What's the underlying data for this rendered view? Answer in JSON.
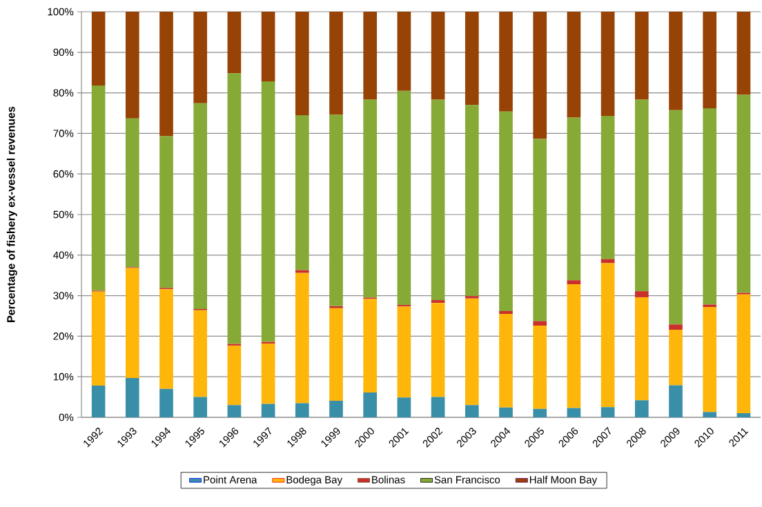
{
  "chart_data": {
    "type": "bar",
    "stacked": true,
    "ylabel": "Percentage of fishery ex-vessel revenues",
    "categories": [
      "1992",
      "1993",
      "1994",
      "1995",
      "1996",
      "1997",
      "1998",
      "1999",
      "2000",
      "2001",
      "2002",
      "2003",
      "2004",
      "2005",
      "2006",
      "2007",
      "2008",
      "2009",
      "2010",
      "2011"
    ],
    "series": [
      {
        "name": "Point Arena",
        "color": "#3a8fa8",
        "values": [
          7.8,
          9.7,
          7.0,
          5.0,
          3.0,
          3.3,
          3.5,
          4.1,
          6.1,
          4.9,
          5.0,
          3.0,
          2.4,
          2.1,
          2.3,
          2.5,
          4.2,
          7.9,
          1.3,
          1.0
        ]
      },
      {
        "name": "Bodega Bay",
        "color": "#ffb60a",
        "values": [
          23.2,
          27.1,
          24.6,
          21.4,
          14.7,
          14.9,
          32.1,
          22.8,
          23.1,
          22.4,
          23.2,
          26.3,
          23.1,
          20.5,
          30.5,
          35.5,
          25.4,
          13.7,
          25.9,
          29.3
        ]
      },
      {
        "name": "Bolinas",
        "color": "#c9302c",
        "values": [
          0.2,
          0.2,
          0.3,
          0.3,
          0.4,
          0.4,
          0.7,
          0.5,
          0.3,
          0.4,
          0.7,
          0.6,
          0.7,
          1.1,
          1.0,
          1.0,
          1.5,
          1.3,
          0.6,
          0.4
        ]
      },
      {
        "name": "San Francisco",
        "color": "#86aa35",
        "values": [
          50.6,
          36.7,
          37.4,
          50.7,
          66.7,
          64.2,
          38.2,
          47.2,
          48.8,
          52.8,
          49.4,
          47.1,
          49.2,
          44.9,
          40.1,
          35.3,
          47.2,
          52.8,
          48.4,
          48.8
        ]
      },
      {
        "name": "Half Moon Bay",
        "color": "#974306",
        "values": [
          18.2,
          26.3,
          30.7,
          22.6,
          15.2,
          17.2,
          25.5,
          25.4,
          21.7,
          19.5,
          21.7,
          23.0,
          24.6,
          31.4,
          26.1,
          25.7,
          21.7,
          24.3,
          23.8,
          20.5
        ]
      }
    ],
    "ylim": [
      0,
      100
    ],
    "yticks": [
      {
        "value": 0,
        "label": "0%"
      },
      {
        "value": 10,
        "label": "10%"
      },
      {
        "value": 20,
        "label": "20%"
      },
      {
        "value": 30,
        "label": "30%"
      },
      {
        "value": 40,
        "label": "40%"
      },
      {
        "value": 50,
        "label": "50%"
      },
      {
        "value": 60,
        "label": "60%"
      },
      {
        "value": 70,
        "label": "70%"
      },
      {
        "value": 80,
        "label": "80%"
      },
      {
        "value": 90,
        "label": "90%"
      },
      {
        "value": 100,
        "label": "100%"
      }
    ],
    "grid": "y",
    "legend": "bottom"
  }
}
